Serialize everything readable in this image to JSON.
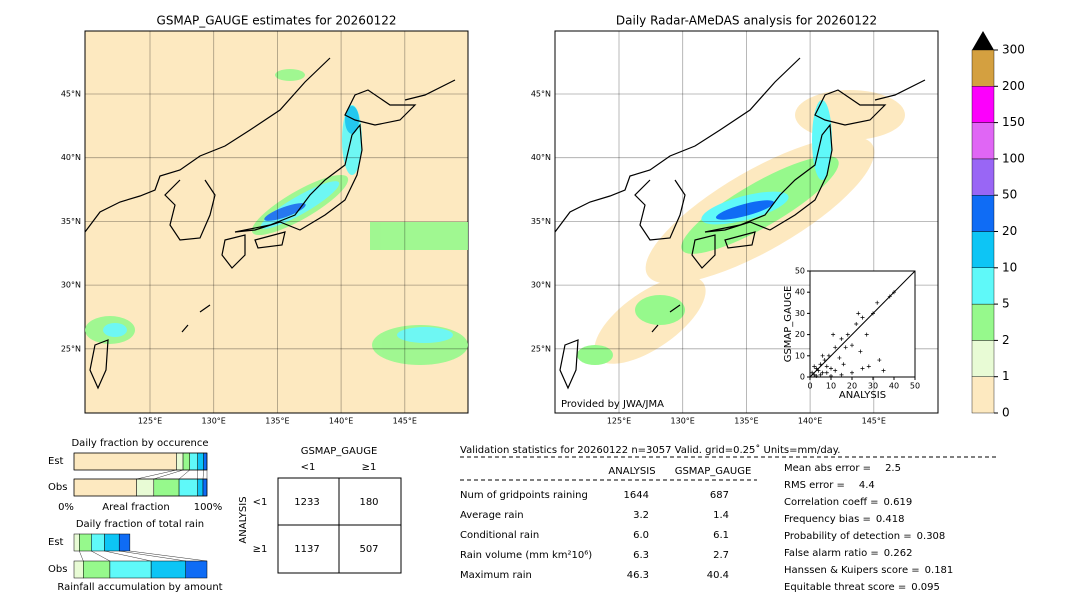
{
  "left_map": {
    "title": "GSMAP_GAUGE estimates for 20260122",
    "lat_labels": [
      "45°N",
      "40°N",
      "35°N",
      "30°N",
      "25°N"
    ],
    "lon_labels": [
      "125°E",
      "130°E",
      "135°E",
      "140°E",
      "145°E"
    ]
  },
  "right_map": {
    "title": "Daily Radar-AMeDAS analysis for 20260122",
    "credit": "Provided by JWA/JMA",
    "lat_labels": [
      "45°N",
      "40°N",
      "35°N",
      "30°N",
      "25°N"
    ],
    "lon_labels": [
      "125°E",
      "130°E",
      "135°E",
      "140°E",
      "145°E"
    ]
  },
  "colorbar": {
    "ticks": [
      0,
      1,
      2,
      5,
      10,
      20,
      50,
      100,
      150,
      200,
      300
    ],
    "colors": [
      "#fde9c0",
      "#e8fbd5",
      "#96f98c",
      "#5ff9f9",
      "#0dc5f5",
      "#0f6cf5",
      "#9966f5",
      "#e066f5",
      "#fc00fc",
      "#d4a040"
    ]
  },
  "chart_data": {
    "type": "scatter",
    "xlabel": "ANALYSIS",
    "ylabel": "GSMAP_GAUGE",
    "xlim": [
      0,
      50
    ],
    "ylim": [
      0,
      50
    ],
    "xticks": [
      0,
      10,
      20,
      30,
      40,
      50
    ],
    "yticks": [
      0,
      10,
      20,
      30,
      40,
      50
    ],
    "x": [
      1,
      2,
      3,
      4,
      5,
      6,
      7,
      8,
      9,
      10,
      12,
      14,
      15,
      16,
      18,
      20,
      22,
      24,
      25,
      27,
      28,
      30,
      32,
      35,
      38,
      40,
      3,
      5,
      8,
      10,
      12,
      15,
      20,
      25,
      33,
      2,
      6,
      11,
      17,
      23
    ],
    "y": [
      2,
      1,
      4,
      3,
      6,
      2,
      8,
      5,
      10,
      4,
      14,
      9,
      18,
      6,
      20,
      15,
      25,
      12,
      28,
      20,
      5,
      30,
      35,
      3,
      38,
      40,
      0.5,
      1,
      2,
      0.5,
      3,
      1,
      2,
      4,
      8,
      5,
      10,
      20,
      14,
      30
    ]
  },
  "occurrence": {
    "title": "Daily fraction by occurence",
    "rows": [
      "Est",
      "Obs"
    ],
    "axis_left": "0%",
    "axis_label": "Areal fraction",
    "axis_right": "100%",
    "colors": [
      "#fde9c0",
      "#e8fbd5",
      "#96f98c",
      "#5ff9f9",
      "#0dc5f5",
      "#0f6cf5"
    ],
    "est": [
      0.77,
      0.05,
      0.05,
      0.06,
      0.045,
      0.025
    ],
    "obs": [
      0.47,
      0.13,
      0.19,
      0.14,
      0.04,
      0.03
    ]
  },
  "total_rain": {
    "title": "Daily fraction of total rain",
    "rows": [
      "Est",
      "Obs"
    ],
    "axis_label": "Rainfall accumulation by amount",
    "colors": [
      "#e8fbd5",
      "#96f98c",
      "#5ff9f9",
      "#0dc5f5",
      "#0f6cf5"
    ],
    "est": [
      0.04,
      0.09,
      0.1,
      0.11,
      0.08
    ],
    "obs": [
      0.07,
      0.2,
      0.31,
      0.26,
      0.16
    ]
  },
  "contingency": {
    "title": "GSMAP_GAUGE",
    "col_labels": [
      "<1",
      "≥1"
    ],
    "row_title": "ANALYSIS",
    "row_labels": [
      "<1",
      "≥1"
    ],
    "cells": [
      [
        1233,
        180
      ],
      [
        1137,
        507
      ]
    ]
  },
  "validation": {
    "header": "Validation statistics for 20260122  n=3057 Valid. grid=0.25˚ Units=mm/day.",
    "columns": [
      "ANALYSIS",
      "GSMAP_GAUGE"
    ],
    "rows": [
      {
        "label": "Num of gridpoints raining",
        "values": [
          "1644",
          "687"
        ]
      },
      {
        "label": "Average rain",
        "values": [
          "3.2",
          "1.4"
        ]
      },
      {
        "label": "Conditional rain",
        "values": [
          "6.0",
          "6.1"
        ]
      },
      {
        "label": "Rain volume (mm km²10⁶)",
        "values": [
          "6.3",
          "2.7"
        ]
      },
      {
        "label": "Maximum rain",
        "values": [
          "46.3",
          "40.4"
        ]
      }
    ],
    "scores": [
      {
        "label": "Mean abs error =",
        "value": "2.5"
      },
      {
        "label": "RMS error =",
        "value": "4.4"
      },
      {
        "label": "Correlation coeff =",
        "value": "0.619"
      },
      {
        "label": "Frequency bias =",
        "value": "0.418"
      },
      {
        "label": "Probability of detection =",
        "value": "0.308"
      },
      {
        "label": "False alarm ratio =",
        "value": "0.262"
      },
      {
        "label": "Hanssen & Kuipers score =",
        "value": "0.181"
      },
      {
        "label": "Equitable threat score =",
        "value": "0.095"
      }
    ]
  }
}
